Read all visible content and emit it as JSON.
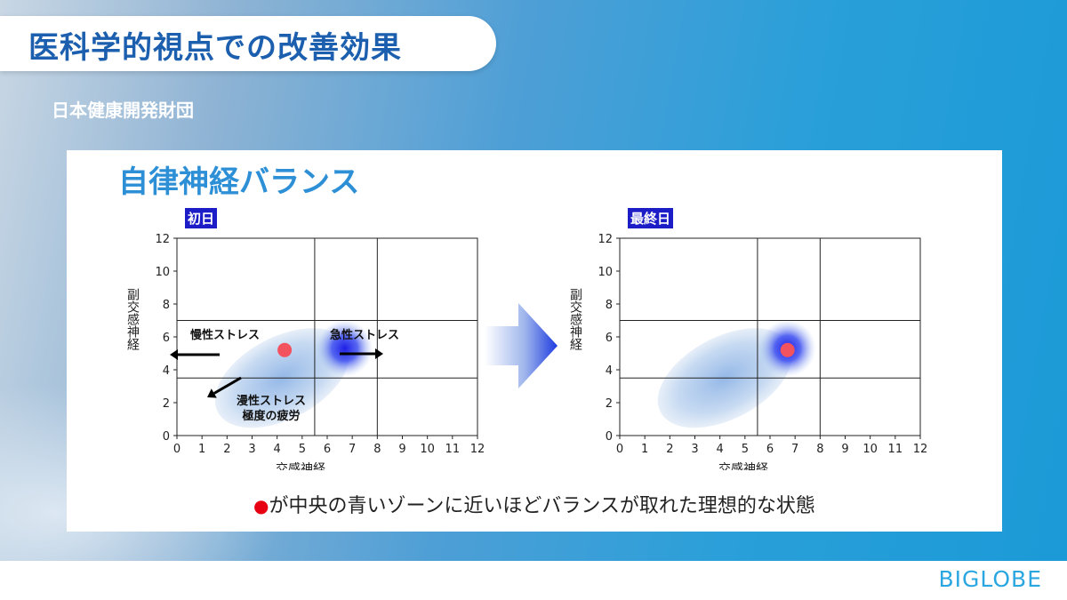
{
  "header": {
    "title": "医科学的視点での改善効果"
  },
  "organization": "日本健康開発財団",
  "panel": {
    "title": "自律神経バランス",
    "caption": "が中央の青いゾーンに近いほどバランスが取れた理想的な状態",
    "caption_bullet": "●"
  },
  "logo": {
    "text": "BIGLOBE"
  },
  "colors": {
    "accent": "#1b5fae",
    "badge": "#1d1dc8",
    "marker": "#f2535e",
    "zone": "#1f1fe6"
  },
  "chart_data": [
    {
      "type": "scatter",
      "label": "初日",
      "xlabel": "交感神経",
      "ylabel": "副交感神経",
      "xlim": [
        0,
        12
      ],
      "ylim": [
        0,
        12
      ],
      "xticks": [
        "0",
        "1",
        "2",
        "3",
        "4",
        "5",
        "6",
        "7",
        "8",
        "9",
        "10",
        "11",
        "12"
      ],
      "yticks": [
        "0",
        "2",
        "4",
        "6",
        "8",
        "10",
        "12"
      ],
      "grid_lines_x": [
        5.5,
        8
      ],
      "grid_lines_y": [
        3.5,
        7
      ],
      "center_zone": {
        "x": 6.7,
        "y": 5.3
      },
      "point": {
        "x": 4.3,
        "y": 5.2
      },
      "annotations": [
        {
          "text": "慢性ストレス",
          "arrow": "left"
        },
        {
          "text": "急性ストレス",
          "arrow": "right"
        },
        {
          "text": "漫性ストレス",
          "arrow": "down-left"
        },
        {
          "text": "極度の疲労"
        }
      ]
    },
    {
      "type": "scatter",
      "label": "最終日",
      "xlabel": "交感神経",
      "ylabel": "副交感神経",
      "xlim": [
        0,
        12
      ],
      "ylim": [
        0,
        12
      ],
      "xticks": [
        "0",
        "1",
        "2",
        "3",
        "4",
        "5",
        "6",
        "7",
        "8",
        "9",
        "10",
        "11",
        "12"
      ],
      "yticks": [
        "0",
        "2",
        "4",
        "6",
        "8",
        "10",
        "12"
      ],
      "grid_lines_x": [
        5.5,
        8
      ],
      "grid_lines_y": [
        3.5,
        7
      ],
      "center_zone": {
        "x": 6.7,
        "y": 5.3
      },
      "point": {
        "x": 6.7,
        "y": 5.2
      },
      "annotations": []
    }
  ]
}
